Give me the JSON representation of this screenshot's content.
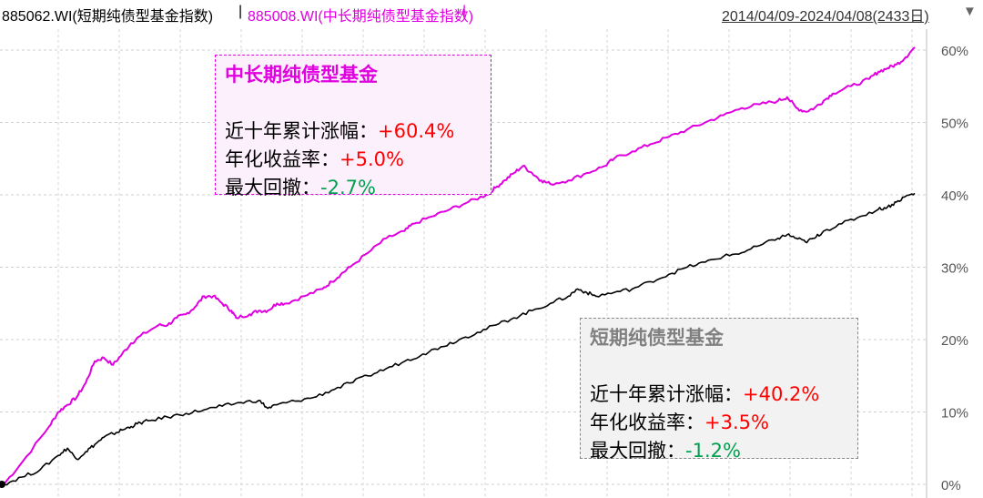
{
  "header": {
    "series1": "885062.WI(短期纯债型基金指数)",
    "separator": "|",
    "series2": "885008.WI(中长期纯债型基金指数)",
    "bar": "|",
    "range": "2014/04/09-2024/04/08(2433日)",
    "menu_icon": "triangle-down-icon"
  },
  "colors": {
    "long": "#e000e0",
    "short": "#000000",
    "pos": "#ff0000",
    "neg": "#00a050"
  },
  "box_long": {
    "title": "中长期纯债型基金",
    "cum_label": "近十年累计涨幅：",
    "cum_value": "+60.4%",
    "ann_label": "年化收益率：",
    "ann_value": "+5.0%",
    "dd_label": "最大回撤：",
    "dd_value": "-2.7%"
  },
  "box_short": {
    "title": "短期纯债型基金",
    "cum_label": "近十年累计涨幅：",
    "cum_value": "+40.2%",
    "ann_label": "年化收益率：",
    "ann_value": "+3.5%",
    "dd_label": "最大回撤：",
    "dd_value": "-1.2%"
  },
  "chart_data": {
    "type": "line",
    "ylim": [
      0,
      63
    ],
    "yticks": [
      "0%",
      "10%",
      "20%",
      "30%",
      "40%",
      "50%",
      "60%"
    ],
    "grid": true,
    "x_range": [
      "2014/04/09",
      "2024/04/08"
    ],
    "series": [
      {
        "name": "885008.WI(中长期纯债型基金指数)",
        "color": "#e000e0",
        "points": [
          [
            0,
            0
          ],
          [
            2,
            3
          ],
          [
            5,
            8
          ],
          [
            6,
            10
          ],
          [
            7,
            11
          ],
          [
            8,
            12
          ],
          [
            9,
            14
          ],
          [
            10,
            17
          ],
          [
            11,
            17.5
          ],
          [
            12,
            16.5
          ],
          [
            13,
            18
          ],
          [
            14,
            19.5
          ],
          [
            15,
            20.5
          ],
          [
            17,
            22
          ],
          [
            18,
            22
          ],
          [
            19,
            23
          ],
          [
            20,
            23.5
          ],
          [
            21,
            24.5
          ],
          [
            22,
            26
          ],
          [
            23,
            26
          ],
          [
            24,
            25
          ],
          [
            25,
            24
          ],
          [
            25.5,
            23
          ],
          [
            27,
            23.5
          ],
          [
            28,
            24
          ],
          [
            29,
            24
          ],
          [
            30,
            25
          ],
          [
            31,
            25
          ],
          [
            33,
            26
          ],
          [
            35,
            27
          ],
          [
            36,
            28
          ],
          [
            37,
            29
          ],
          [
            38,
            30
          ],
          [
            40,
            32
          ],
          [
            42,
            34
          ],
          [
            44,
            35
          ],
          [
            45,
            36
          ],
          [
            47,
            37
          ],
          [
            49,
            38
          ],
          [
            51,
            39
          ],
          [
            53,
            40
          ],
          [
            54,
            41
          ],
          [
            55,
            42
          ],
          [
            56,
            43
          ],
          [
            57,
            44
          ],
          [
            58,
            43
          ],
          [
            59,
            42
          ],
          [
            60,
            41.5
          ],
          [
            62,
            42
          ],
          [
            64,
            43
          ],
          [
            66,
            44
          ],
          [
            67,
            45
          ],
          [
            69,
            46
          ],
          [
            71,
            47
          ],
          [
            73,
            48
          ],
          [
            75,
            49
          ],
          [
            77,
            50
          ],
          [
            79,
            51
          ],
          [
            81,
            52
          ],
          [
            83,
            52.5
          ],
          [
            85,
            53
          ],
          [
            86,
            53.5
          ],
          [
            87,
            52
          ],
          [
            88,
            51.5
          ],
          [
            89,
            52
          ],
          [
            90,
            53
          ],
          [
            91,
            54
          ],
          [
            93,
            55
          ],
          [
            95,
            56
          ],
          [
            96,
            57
          ],
          [
            97,
            57.5
          ],
          [
            98,
            58
          ],
          [
            99,
            59
          ],
          [
            100,
            60.4
          ]
        ]
      },
      {
        "name": "885062.WI(短期纯债型基金指数)",
        "color": "#000000",
        "points": [
          [
            0,
            0
          ],
          [
            2,
            1
          ],
          [
            4,
            2
          ],
          [
            6,
            4
          ],
          [
            7,
            5
          ],
          [
            8,
            3.5
          ],
          [
            9,
            4.5
          ],
          [
            10,
            5.5
          ],
          [
            11,
            6.5
          ],
          [
            12,
            7
          ],
          [
            13,
            7.5
          ],
          [
            14,
            8
          ],
          [
            15,
            8.5
          ],
          [
            16,
            8.8
          ],
          [
            18,
            9.3
          ],
          [
            20,
            9.8
          ],
          [
            22,
            10.3
          ],
          [
            24,
            10.8
          ],
          [
            26,
            11.3
          ],
          [
            28,
            11.6
          ],
          [
            29,
            10.5
          ],
          [
            30,
            11
          ],
          [
            32,
            11.5
          ],
          [
            34,
            12
          ],
          [
            36,
            13
          ],
          [
            38,
            14
          ],
          [
            40,
            15
          ],
          [
            42,
            16
          ],
          [
            44,
            17
          ],
          [
            46,
            18
          ],
          [
            48,
            19
          ],
          [
            50,
            20
          ],
          [
            52,
            21
          ],
          [
            54,
            22
          ],
          [
            56,
            23
          ],
          [
            58,
            24
          ],
          [
            60,
            25
          ],
          [
            62,
            26
          ],
          [
            63,
            27
          ],
          [
            64,
            26.5
          ],
          [
            65,
            26
          ],
          [
            67,
            26.5
          ],
          [
            69,
            27
          ],
          [
            71,
            28
          ],
          [
            73,
            29
          ],
          [
            75,
            30
          ],
          [
            77,
            30.7
          ],
          [
            79,
            31.5
          ],
          [
            81,
            32
          ],
          [
            83,
            33
          ],
          [
            85,
            34
          ],
          [
            86,
            34.5
          ],
          [
            87,
            34
          ],
          [
            88,
            33.5
          ],
          [
            89,
            34
          ],
          [
            90,
            35
          ],
          [
            92,
            36
          ],
          [
            94,
            37
          ],
          [
            96,
            38
          ],
          [
            97,
            38.3
          ],
          [
            98,
            39
          ],
          [
            99,
            39.8
          ],
          [
            100,
            40.2
          ]
        ]
      }
    ]
  }
}
